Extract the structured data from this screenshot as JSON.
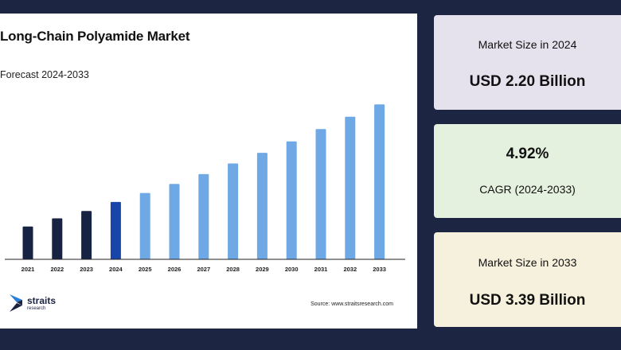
{
  "chart_data": {
    "type": "bar",
    "title": "Long-Chain Polyamide Market",
    "subtitle": "Forecast 2024-2033",
    "categories": [
      "2021",
      "2022",
      "2023",
      "2024",
      "2025",
      "2026",
      "2027",
      "2028",
      "2029",
      "2030",
      "2031",
      "2032",
      "2033"
    ],
    "values": [
      1.9,
      2.0,
      2.09,
      2.2,
      2.31,
      2.42,
      2.54,
      2.67,
      2.8,
      2.94,
      3.09,
      3.24,
      3.39
    ],
    "ylim": [
      1.5,
      3.5
    ],
    "value_unit": "USD Billion",
    "grid": false,
    "legend": "none",
    "colors": {
      "historical": "#172342",
      "base_year": "#1846a8",
      "forecast": "#6ea8e5",
      "axis": "#222222"
    },
    "bar_roles": [
      "historical",
      "historical",
      "historical",
      "base_year",
      "forecast",
      "forecast",
      "forecast",
      "forecast",
      "forecast",
      "forecast",
      "forecast",
      "forecast",
      "forecast"
    ]
  },
  "brand": {
    "name": "straits",
    "tagline": "research",
    "icon": "straits-logo-icon"
  },
  "source": "Source: www.straitsresearch.com",
  "cards": [
    {
      "label": "Market Size in 2024",
      "value": "USD 2.20 Billion"
    },
    {
      "value": "4.92%",
      "label": "CAGR (2024-2033)"
    },
    {
      "label": "Market Size in 2033",
      "value": "USD 3.39 Billion"
    }
  ]
}
